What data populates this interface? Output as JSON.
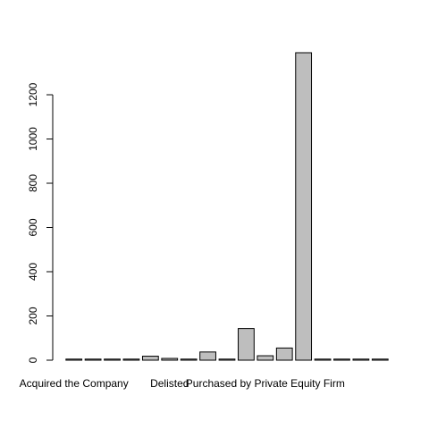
{
  "chart_data": {
    "type": "bar",
    "categories": [
      "Acquired the Company",
      "",
      "",
      "",
      "",
      "Delisted",
      "",
      "",
      "",
      "",
      "Purchased by Private Equity Firm",
      "",
      "",
      "",
      "",
      "",
      ""
    ],
    "values": [
      1,
      1,
      1,
      1,
      18,
      8,
      1,
      37,
      2,
      143,
      20,
      55,
      1390,
      1,
      1,
      1,
      1
    ],
    "ylim": [
      0,
      1390
    ],
    "yticks": [
      0,
      200,
      400,
      600,
      800,
      1000,
      1200
    ],
    "grid": false,
    "legend": "none",
    "bar_color": "#bebebe",
    "edge_color": "#000000",
    "title": "",
    "xlabel": "",
    "ylabel": ""
  }
}
